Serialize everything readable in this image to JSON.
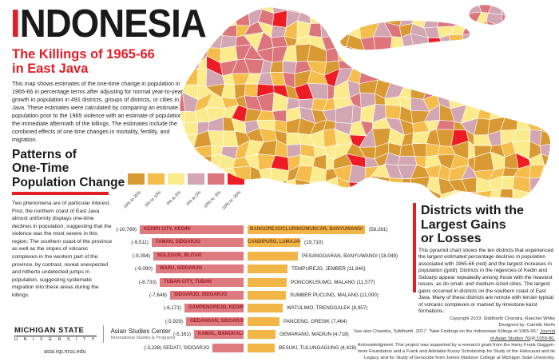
{
  "colors": {
    "accent_red": "#E31E26",
    "bar_rose": "#DD7B80",
    "bar_gold": "#F2B547",
    "rose_text": "#9E1B21",
    "gold_text": "#7A4418"
  },
  "header": {
    "title_first_letter": "I",
    "title_rest": "NDONESIA",
    "subtitle_line1": "The Killings of 1965-66",
    "subtitle_line2": "in East Java",
    "intro": "This map shows estimates of the one-time change in population in 1965-66 in percentage terms after adjusting for normal year-to-year growth in population in 491 districts, groups of districts, or cities in East Java. These estimates were calculated by comparing an estimate of population prior to the 1965 violence with an estimate of population in the immediate aftermath of the killings. The estimates include the combined effects of one time changes in mortality, fertility, and migration."
  },
  "patterns": {
    "heading_line1": "Patterns of",
    "heading_line2": "One-Time",
    "heading_line3": "Population Change",
    "body": "Two phenomena are of particular interest. First, the northern coast of East Java almost uniformly displays one-time declines in population, suggesting that the violence was the most severe in this region. The southern coast of the province as well as the slopes of volcanic complexes in the western part of the province, by contrast, reveal unexpected and hitherto undetected jumps in population, suggesting systematic migration into these areas during the killings."
  },
  "legend": {
    "bins": [
      {
        "label": "10% to 20%",
        "color": "#D99A33"
      },
      {
        "label": "5% to 10%",
        "color": "#F4BD4C"
      },
      {
        "label": "0% to 5%",
        "color": "#FBEB8D"
      },
      {
        "label": "-5% to 0%",
        "color": "#D2A6B2"
      },
      {
        "label": "-10% to -5%",
        "color": "#DC757C"
      },
      {
        "label": "-10% to -20%",
        "color": "#EE1C25"
      }
    ]
  },
  "districts_panel": {
    "heading_line1": "Districts with the",
    "heading_line2": "Largest Gains",
    "heading_line3": "or Losses",
    "body": "This pyramid chart shows the ten districts that experienced the largest estimated percentage declines in population associated with 1965-66 (red) and the largest increases in population (gold). Districts in the regencies of Kediri and Sidoarjo appear repeatedly among those with the heaviest losses, as do small- and medium-sized cities. The largest gains occurred in districts on the southern coast of East Java. Many of these districts are remote with terrain typical of volcanic complexes or marked by limestone karst formations."
  },
  "chart_data": {
    "type": "bar",
    "subtype": "population-pyramid",
    "title": "Districts with the Largest Gains or Losses",
    "losses": [
      {
        "district": "KEDIRI CITY, KEDIRI",
        "value": -10769,
        "label": "(-10,769)",
        "name_inside": true
      },
      {
        "district": "TAMAN, SIDOARJO",
        "value": -9511,
        "label": "(-9,511)",
        "name_inside": true
      },
      {
        "district": "NGLEGOK, BLITAR",
        "value": -9394,
        "label": "(-9,394)",
        "name_inside": true
      },
      {
        "district": "WARU, SIDOARJO",
        "value": -9090,
        "label": "(-9,090)",
        "name_inside": true
      },
      {
        "district": "TUBAN CITY, TUBAN",
        "value": -8733,
        "label": "(-8,733)",
        "name_inside": true
      },
      {
        "district": "SIDOARJO, SIDOARJO",
        "value": -7648,
        "label": "(-7,648)",
        "name_inside": true
      },
      {
        "district": "GAMPENGREJO, KEDIRI",
        "value": -6171,
        "label": "(-6,171)",
        "name_inside": true
      },
      {
        "district": "GEDANGAN, SIDOARJO",
        "value": -5929,
        "label": "(-5,929)",
        "name_inside": true
      },
      {
        "district": "KAMAL, BANGKALAN",
        "value": -5161,
        "label": "(-5,161)",
        "name_inside": true
      },
      {
        "district": "SEDATI, SIDOARJO",
        "value": -3238,
        "label": "(-3,238)",
        "name_inside": false
      }
    ],
    "gains": [
      {
        "district": "BANGOREJO/CLURING/MUNCAR, BANYUWANGI",
        "value": 58281,
        "label": "(58,281)",
        "name_inside": true
      },
      {
        "district": "CANDIPURO, LUMAJANG",
        "value": 19710,
        "label": "(19,710)",
        "name_inside": true
      },
      {
        "district": "PESANGGARAN, BANYUWANGI",
        "value": 18049,
        "label": "(18,049)",
        "name_inside": false
      },
      {
        "district": "TEMPUREJO, JEMBER",
        "value": 11840,
        "label": "(11,840)",
        "name_inside": false
      },
      {
        "district": "PONCOKUSUMO, MALANG",
        "value": 11577,
        "label": "(11,577)",
        "name_inside": false
      },
      {
        "district": "SUMBER PUCUNG, MALANG",
        "value": 11000,
        "label": "(11,000)",
        "name_inside": false
      },
      {
        "district": "WATULIMO, TRENGGALEK",
        "value": 8957,
        "label": "(8,957)",
        "name_inside": false
      },
      {
        "district": "PANCENG, GRESIK",
        "value": 7464,
        "label": "(7,464)",
        "name_inside": false
      },
      {
        "district": "GEMARANG, MADIUN",
        "value": 4718,
        "label": "(4,718)",
        "name_inside": false
      },
      {
        "district": "BESUKI, TULUNGAGUNG",
        "value": 4428,
        "label": "(4,428)",
        "name_inside": false
      }
    ]
  },
  "footer": {
    "msu_line1": "MICHIGAN STATE",
    "msu_line2": "U N I V E R S I T Y",
    "center_name": "Asian Studies Center",
    "center_sub": "International Studies & Programs",
    "url": "asia.isp.msu.edu",
    "credits": [
      [
        {
          "t": "Copyright 2019: Siddharth Chandra, Raechel White"
        }
      ],
      [
        {
          "t": "Designed by: Camille North"
        }
      ],
      [
        {
          "t": "See also Chandra, Siddharth. 2017. “New Findings on the Indonesian Killings of 1965-66.” "
        },
        {
          "t": "Journal",
          "u": true
        }
      ],
      [
        {
          "t": "of Asian Studies 76(4):1059-86.",
          "u": true
        }
      ],
      [
        {
          "t": "Acknowledgment: This project was supported by a research grant from the Harry Frank Guggen-"
        }
      ],
      [
        {
          "t": "heim Foundation and a Frank and Adelaide Kussy Scholarship for Study of the Holocaust and its"
        }
      ],
      [
        {
          "t": "Legacy and for Study of Genocide from James Madison College at Michigan State University."
        }
      ]
    ]
  }
}
